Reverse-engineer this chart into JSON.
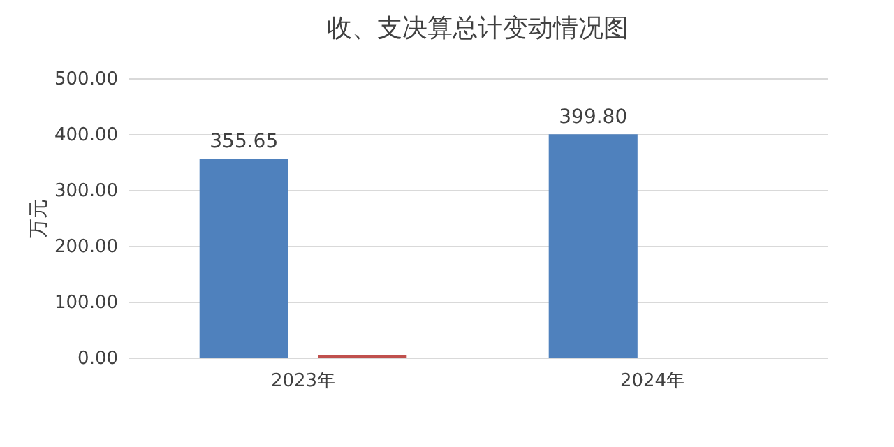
{
  "chart_data": {
    "type": "bar",
    "title": "收、支决算总计变动情况图",
    "ylabel": "万元",
    "categories": [
      "2023年",
      "2024年"
    ],
    "series": [
      {
        "color": "#4f81bd",
        "values": [
          355.65,
          399.8
        ],
        "value_labels": [
          "355.65",
          "399.80"
        ]
      },
      {
        "color": "#c0504d",
        "values": [
          5,
          null
        ]
      }
    ],
    "ylim": [
      0,
      500
    ],
    "yticks": [
      {
        "value": 0,
        "label": "0.00"
      },
      {
        "value": 100,
        "label": "100.00"
      },
      {
        "value": 200,
        "label": "200.00"
      },
      {
        "value": 300,
        "label": "300.00"
      },
      {
        "value": 400,
        "label": "400.00"
      },
      {
        "value": 500,
        "label": "500.00"
      }
    ],
    "grid": "y",
    "legend": false
  }
}
